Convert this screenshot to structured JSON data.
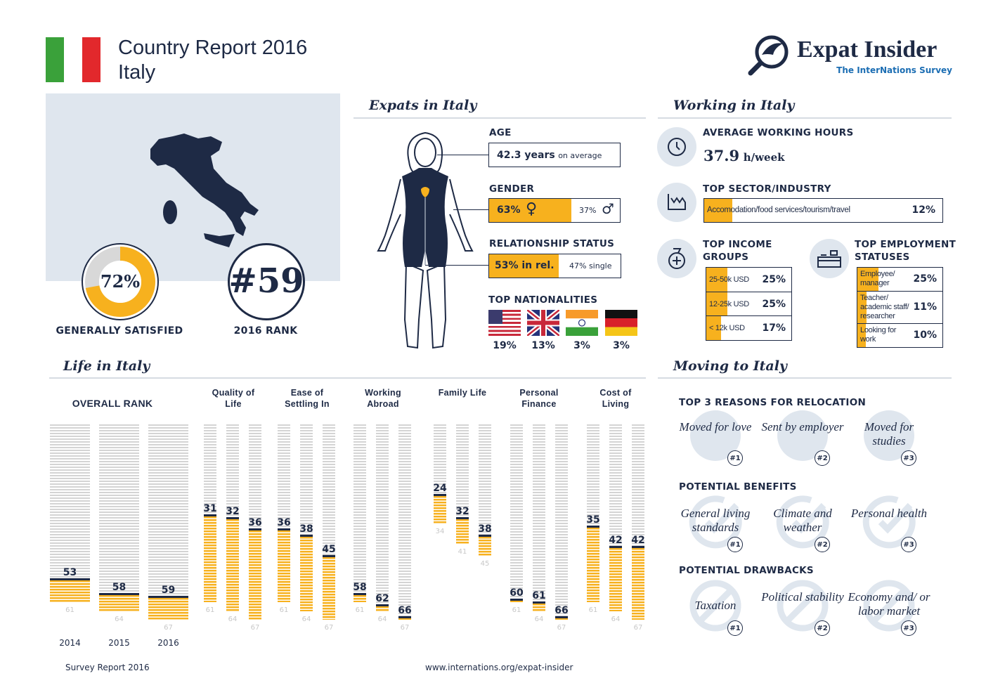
{
  "header": {
    "title": "Country Report 2016",
    "country": "Italy"
  },
  "logo": {
    "name": "Expat Insider",
    "tagline": "The InterNations Survey"
  },
  "colors": {
    "navy": "#1e2a45",
    "accent": "#f7b11e",
    "panel": "#dfe6ee",
    "tagline": "#1b6db3"
  },
  "overview": {
    "satisfied_value": "72%",
    "satisfied_fraction": 0.72,
    "satisfied_label": "GENERALLY SATISFIED",
    "rank_value": "#59",
    "rank_label": "2016 RANK"
  },
  "expats": {
    "title": "Expats in Italy",
    "age_label": "AGE",
    "age_value": "42.3 years",
    "age_suffix": "on average",
    "gender_label": "GENDER",
    "female": "63%",
    "female_fraction": 0.63,
    "male": "37%",
    "relationship_label": "RELATIONSHIP STATUS",
    "in_rel": "53% in rel.",
    "in_rel_fraction": 0.53,
    "single": "47% single",
    "nationalities_label": "TOP NATIONALITIES",
    "nationalities": [
      {
        "flag": "usa-flag",
        "value": "19%"
      },
      {
        "flag": "uk-flag",
        "value": "13%"
      },
      {
        "flag": "india-flag",
        "value": "3%"
      },
      {
        "flag": "germany-flag",
        "value": "3%"
      }
    ]
  },
  "working": {
    "title": "Working in Italy",
    "hours_label": "AVERAGE WORKING HOURS",
    "hours_value": "37.9",
    "hours_unit": "h/week",
    "sector_label": "TOP SECTOR/INDUSTRY",
    "sector_name": "Accomodation/food services/tourism/travel",
    "sector_value": "12%",
    "income_label_1": "TOP INCOME",
    "income_label_2": "GROUPS",
    "income": [
      {
        "label": "25-50k USD",
        "value": "25%",
        "fraction": 0.25
      },
      {
        "label": "12-25k USD",
        "value": "25%",
        "fraction": 0.25
      },
      {
        "label": "< 12k USD",
        "value": "17%",
        "fraction": 0.17
      }
    ],
    "employment_label_1": "TOP EMPLOYMENT",
    "employment_label_2": "STATUSES",
    "employment": [
      {
        "label": "Employee/ manager",
        "value": "25%",
        "fraction": 0.25
      },
      {
        "label": "Teacher/ academic staff/ researcher",
        "value": "11%",
        "fraction": 0.11
      },
      {
        "label": "Looking for work",
        "value": "10%",
        "fraction": 0.1
      }
    ]
  },
  "life": {
    "title": "Life in Italy"
  },
  "moving": {
    "title": "Moving to Italy",
    "reasons_label": "TOP 3 REASONS FOR RELOCATION",
    "reasons": [
      {
        "text": "Moved for love",
        "rank": "#1"
      },
      {
        "text": "Sent by employer",
        "rank": "#2"
      },
      {
        "text": "Moved for studies",
        "rank": "#3"
      }
    ],
    "benefits_label": "POTENTIAL BENEFITS",
    "benefits": [
      {
        "text": "General living standards",
        "rank": "#1"
      },
      {
        "text": "Climate and weather",
        "rank": "#2"
      },
      {
        "text": "Personal health",
        "rank": "#3"
      }
    ],
    "drawbacks_label": "POTENTIAL DRAWBACKS",
    "drawbacks": [
      {
        "text": "Taxation",
        "rank": "#1"
      },
      {
        "text": "Political stability",
        "rank": "#2"
      },
      {
        "text": "Economy and/ or labor market",
        "rank": "#3"
      }
    ]
  },
  "footer": {
    "left": "Survey Report 2016",
    "center": "www.internations.org/expat-insider"
  },
  "chart_data": {
    "type": "bar",
    "title": "",
    "note": "",
    "years": [
      "2014",
      "2015",
      "2016"
    ],
    "groups": [
      {
        "name": "OVERALL RANK",
        "ranks": [
          53,
          58,
          59
        ],
        "totals": [
          61,
          64,
          67
        ]
      },
      {
        "name": "Quality of Life",
        "ranks": [
          31,
          32,
          36
        ],
        "totals": [
          61,
          64,
          67
        ]
      },
      {
        "name": "Ease of Settling In",
        "ranks": [
          36,
          38,
          45
        ],
        "totals": [
          61,
          64,
          67
        ]
      },
      {
        "name": "Working Abroad",
        "ranks": [
          58,
          62,
          66
        ],
        "totals": [
          61,
          64,
          67
        ]
      },
      {
        "name": "Family Life",
        "ranks": [
          24,
          32,
          38
        ],
        "totals": [
          34,
          41,
          45
        ]
      },
      {
        "name": "Personal Finance",
        "ranks": [
          60,
          61,
          66
        ],
        "totals": [
          61,
          64,
          67
        ]
      },
      {
        "name": "Cost of Living",
        "ranks": [
          35,
          42,
          42
        ],
        "totals": [
          61,
          64,
          67
        ]
      }
    ]
  }
}
